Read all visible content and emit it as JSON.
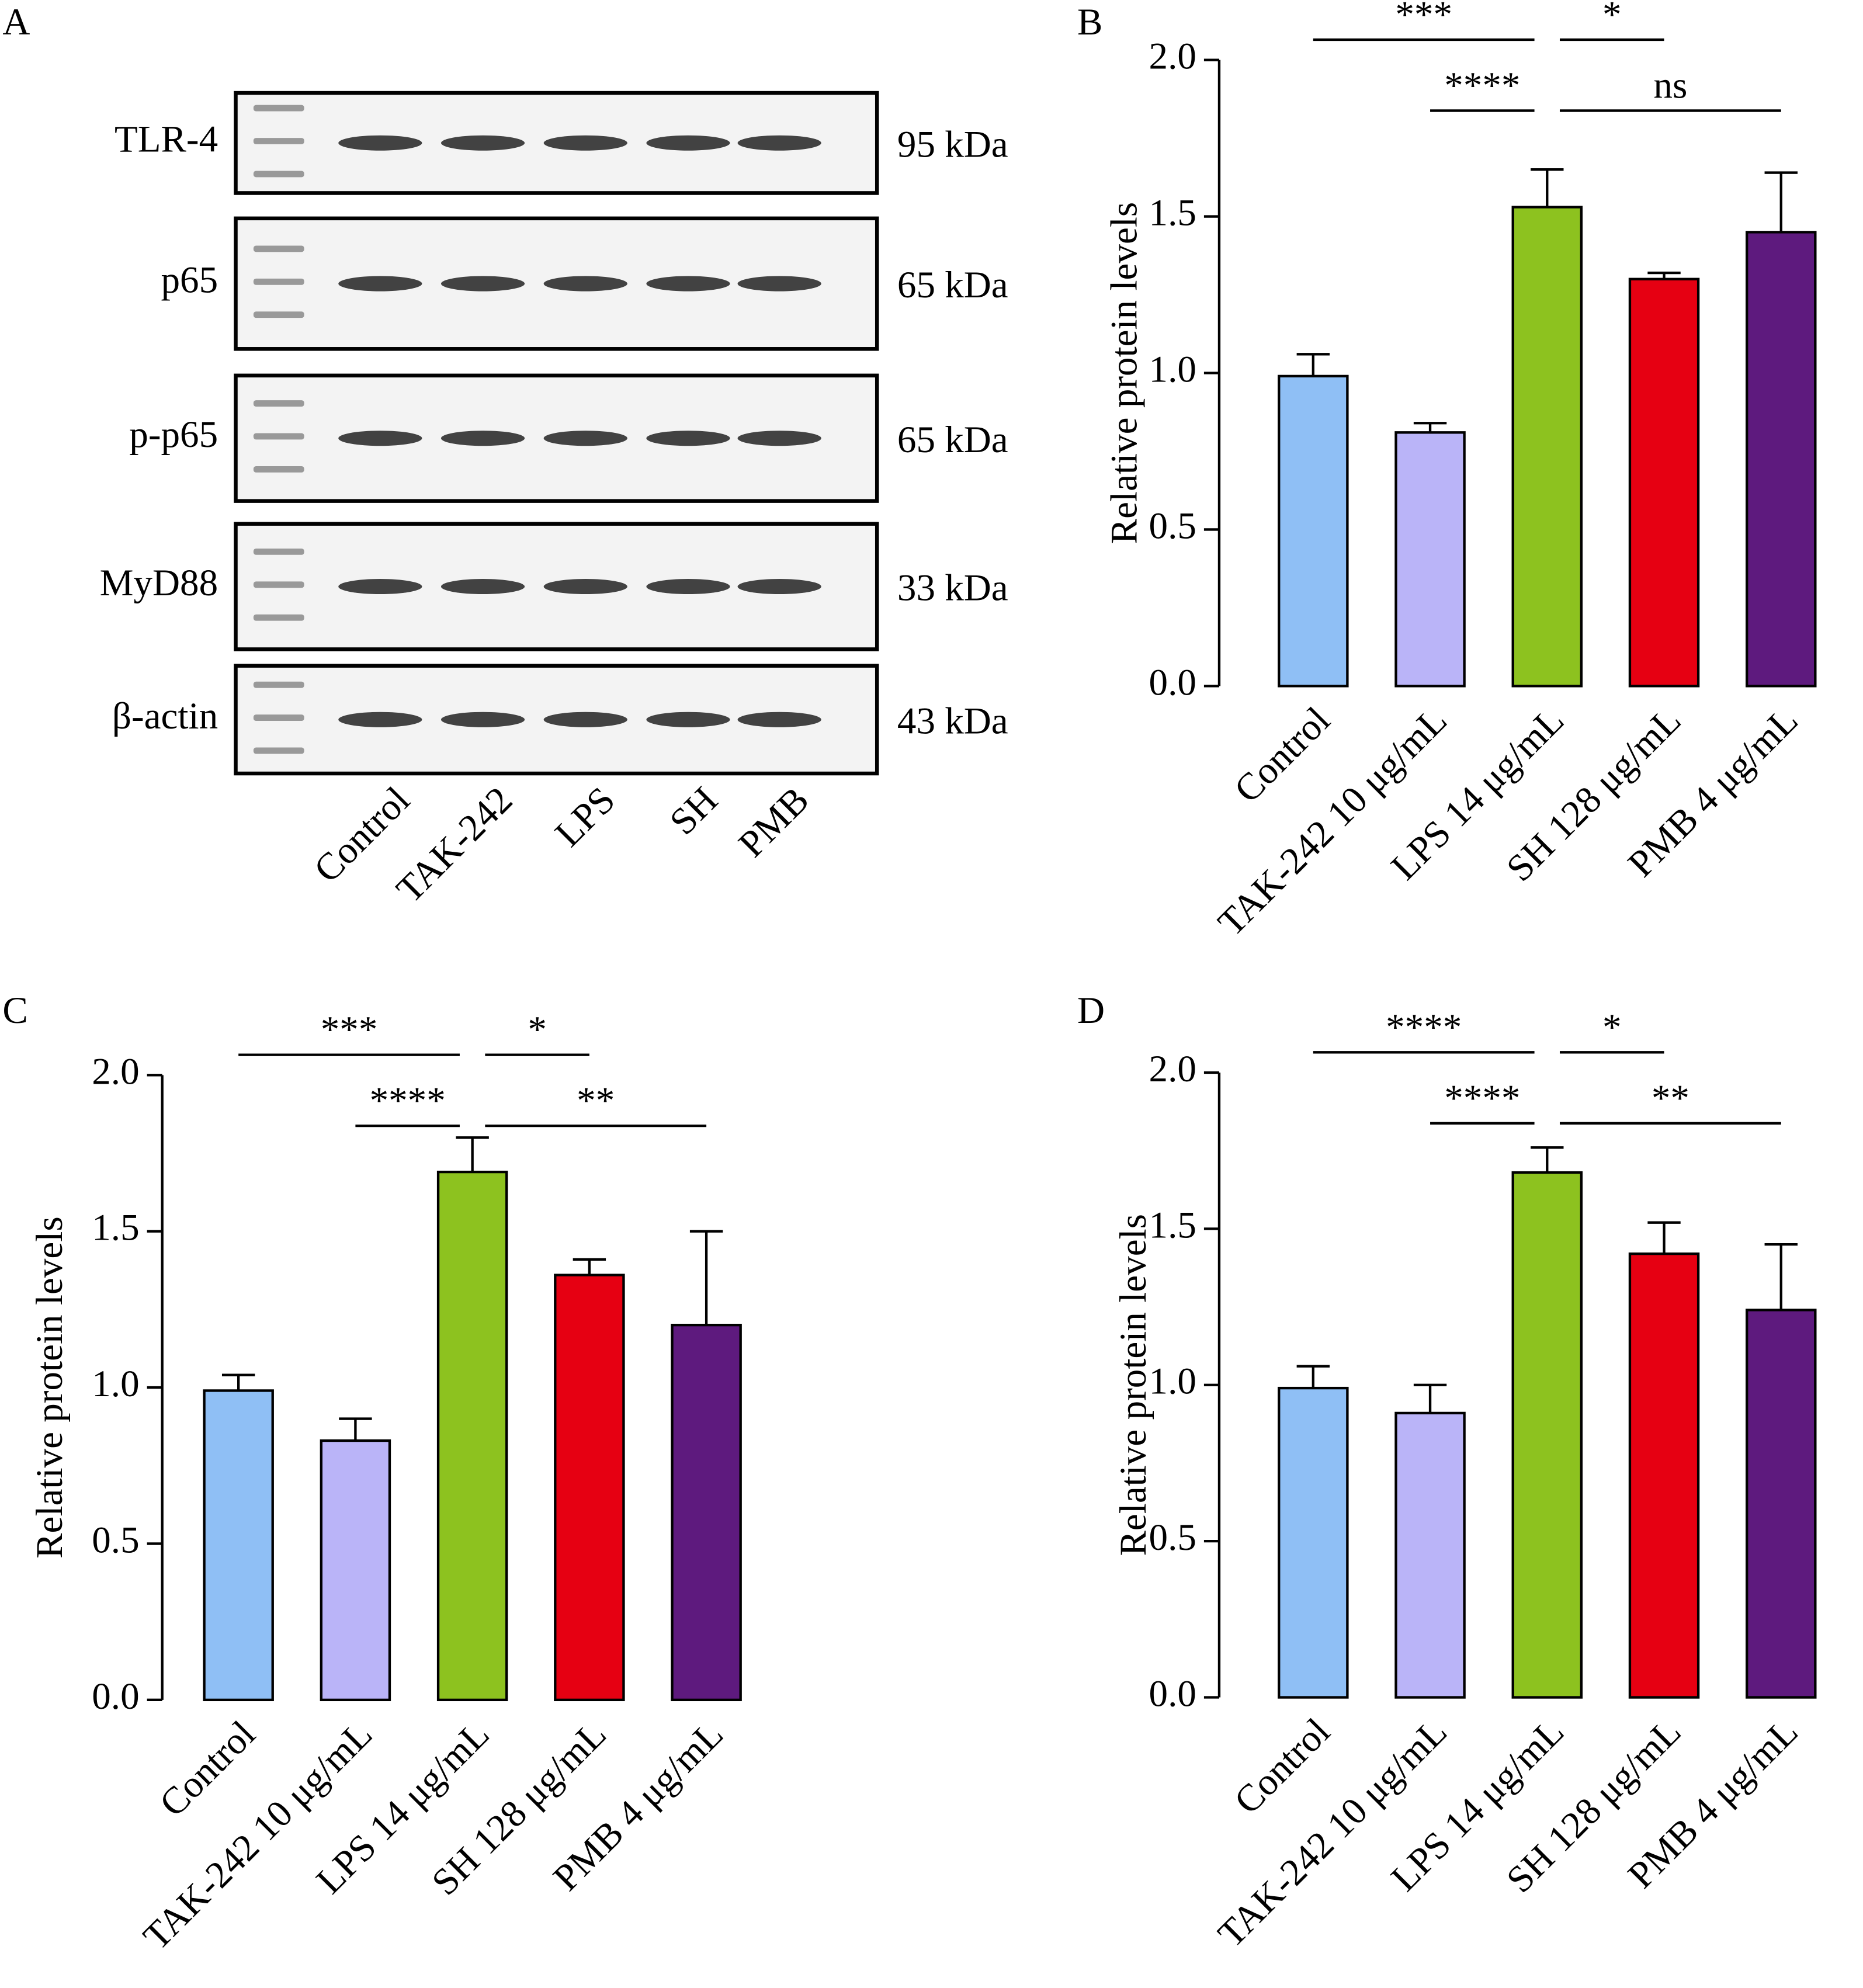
{
  "blot": {
    "panel_label": "A",
    "rows": [
      {
        "label": "TLR-4",
        "kda": "95 kDa"
      },
      {
        "label": "p65",
        "kda": "65 kDa"
      },
      {
        "label": "p-p65",
        "kda": "65 kDa"
      },
      {
        "label": "MyD88",
        "kda": "33 kDa"
      },
      {
        "label": "β-actin",
        "kda": "43 kDa"
      }
    ],
    "lanes": [
      "Control",
      "TAK-242",
      "LPS",
      "SH",
      "PMB"
    ]
  },
  "chart_data": [
    {
      "type": "bar",
      "panel_label": "B",
      "ylabel": "Relative protein levels",
      "categories": [
        "Control",
        "TAK-242 10 μg/mL",
        "LPS 14 μg/mL",
        "SH 128 μg/mL",
        "PMB 4 μg/mL"
      ],
      "values": [
        0.99,
        0.81,
        1.53,
        1.3,
        1.45
      ],
      "errors": [
        0.07,
        0.03,
        0.12,
        0.02,
        0.19
      ],
      "colors": [
        "#8fbff5",
        "#bab4f8",
        "#8dc21f",
        "#e60012",
        "#5e1a7e"
      ],
      "ylim": [
        0,
        2
      ],
      "yticks": [
        {
          "value": 0,
          "label": "0.0"
        },
        {
          "value": 0.5,
          "label": "0.5"
        },
        {
          "value": 1,
          "label": "1.0"
        },
        {
          "value": 1.5,
          "label": "1.5"
        },
        {
          "value": 2,
          "label": "2.0"
        }
      ],
      "annotations": [
        {
          "text": "***",
          "between": [
            "Control",
            "LPS 14 μg/mL"
          ]
        },
        {
          "text": "*",
          "between": [
            "LPS 14 μg/mL",
            "SH 128 μg/mL"
          ]
        },
        {
          "text": "****",
          "between": [
            "TAK-242 10 μg/mL",
            "LPS 14 μg/mL"
          ]
        },
        {
          "text": "ns",
          "between": [
            "LPS 14 μg/mL",
            "PMB 4 μg/mL"
          ]
        }
      ]
    },
    {
      "type": "bar",
      "panel_label": "C",
      "ylabel": "Relative protein levels",
      "categories": [
        "Control",
        "TAK-242 10 μg/mL",
        "LPS 14 μg/mL",
        "SH 128 μg/mL",
        "PMB 4 μg/mL"
      ],
      "values": [
        0.99,
        0.83,
        1.69,
        1.36,
        1.2
      ],
      "errors": [
        0.05,
        0.07,
        0.11,
        0.05,
        0.3
      ],
      "colors": [
        "#8fbff5",
        "#bab4f8",
        "#8dc21f",
        "#e60012",
        "#5e1a7e"
      ],
      "ylim": [
        0,
        2
      ],
      "yticks": [
        {
          "value": 0,
          "label": "0.0"
        },
        {
          "value": 0.5,
          "label": "0.5"
        },
        {
          "value": 1,
          "label": "1.0"
        },
        {
          "value": 1.5,
          "label": "1.5"
        },
        {
          "value": 2,
          "label": "2.0"
        }
      ],
      "annotations": [
        {
          "text": "***",
          "between": [
            "Control",
            "LPS 14 μg/mL"
          ]
        },
        {
          "text": "*",
          "between": [
            "LPS 14 μg/mL",
            "SH 128 μg/mL"
          ]
        },
        {
          "text": "****",
          "between": [
            "TAK-242 10 μg/mL",
            "LPS 14 μg/mL"
          ]
        },
        {
          "text": "**",
          "between": [
            "LPS 14 μg/mL",
            "PMB 4 μg/mL"
          ]
        }
      ]
    },
    {
      "type": "bar",
      "panel_label": "D",
      "ylabel": "Relative protein levels",
      "categories": [
        "Control",
        "TAK-242 10 μg/mL",
        "LPS 14 μg/mL",
        "SH 128 μg/mL",
        "PMB 4 μg/mL"
      ],
      "values": [
        0.99,
        0.91,
        1.68,
        1.42,
        1.24
      ],
      "errors": [
        0.07,
        0.09,
        0.08,
        0.1,
        0.21
      ],
      "colors": [
        "#8fbff5",
        "#bab4f8",
        "#8dc21f",
        "#e60012",
        "#5e1a7e"
      ],
      "ylim": [
        0,
        2
      ],
      "yticks": [
        {
          "value": 0,
          "label": "0.0"
        },
        {
          "value": 0.5,
          "label": "0.5"
        },
        {
          "value": 1,
          "label": "1.0"
        },
        {
          "value": 1.5,
          "label": "1.5"
        },
        {
          "value": 2,
          "label": "2.0"
        }
      ],
      "annotations": [
        {
          "text": "****",
          "between": [
            "Control",
            "LPS 14 μg/mL"
          ]
        },
        {
          "text": "*",
          "between": [
            "LPS 14 μg/mL",
            "SH 128 μg/mL"
          ]
        },
        {
          "text": "****",
          "between": [
            "TAK-242 10 μg/mL",
            "LPS 14 μg/mL"
          ]
        },
        {
          "text": "**",
          "between": [
            "LPS 14 μg/mL",
            "PMB 4 μg/mL"
          ]
        }
      ]
    }
  ]
}
